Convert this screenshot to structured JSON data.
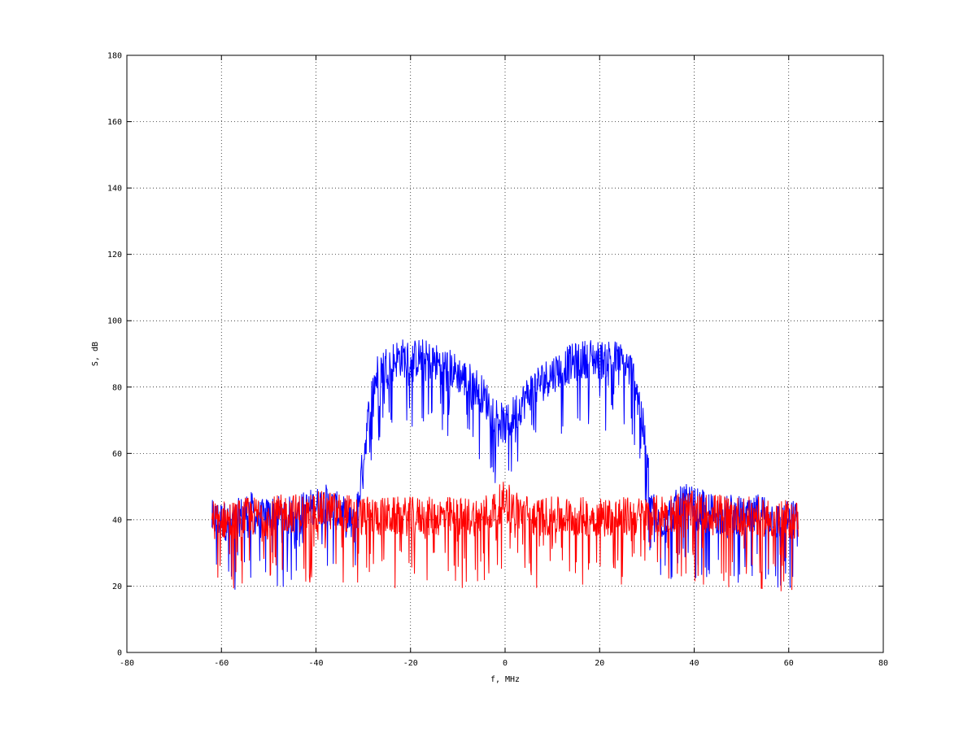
{
  "chart_data": {
    "type": "line",
    "title": "",
    "xlabel": "f, MHz",
    "ylabel": "S, dB",
    "xlim": [
      -80,
      80
    ],
    "ylim": [
      0,
      180
    ],
    "xticks": [
      -80,
      -60,
      -40,
      -20,
      0,
      20,
      40,
      60,
      80
    ],
    "yticks": [
      0,
      20,
      40,
      60,
      80,
      100,
      120,
      140,
      160,
      180
    ],
    "xtick_labels": [
      "-80",
      "-60",
      "-40",
      "-20",
      "0",
      "20",
      "40",
      "60",
      "80"
    ],
    "ytick_labels": [
      "0",
      "20",
      "40",
      "60",
      "80",
      "100",
      "120",
      "140",
      "160",
      "180"
    ],
    "grid": true,
    "legend": "none",
    "series": [
      {
        "color": "#0000ff",
        "x": [
          -62,
          -60,
          -58,
          -56,
          -54,
          -52,
          -50,
          -48,
          -46,
          -44,
          -42,
          -40,
          -38,
          -36,
          -34,
          -32,
          -31,
          -30,
          -29,
          -28,
          -27,
          -26,
          -25,
          -24,
          -22,
          -20,
          -18,
          -16,
          -14,
          -12,
          -10,
          -8,
          -6,
          -4,
          -3,
          -2,
          -1,
          0,
          1,
          2,
          3,
          4,
          6,
          8,
          10,
          12,
          14,
          16,
          18,
          20,
          22,
          24,
          25,
          26,
          27,
          28,
          29,
          30,
          31,
          32,
          34,
          36,
          38,
          40,
          42,
          44,
          46,
          48,
          50,
          52,
          54,
          56,
          58,
          60,
          62
        ],
        "y": [
          40,
          40,
          39,
          41,
          43,
          40,
          41,
          42,
          41,
          42,
          43,
          44,
          45,
          43,
          41,
          38,
          46,
          58,
          70,
          80,
          84,
          86,
          87,
          88,
          89,
          88,
          89,
          88,
          87,
          86,
          84,
          82,
          80,
          76,
          74,
          72,
          70,
          68,
          70,
          72,
          74,
          76,
          80,
          82,
          84,
          86,
          87,
          88,
          89,
          88,
          89,
          88,
          87,
          86,
          84,
          80,
          70,
          58,
          46,
          38,
          41,
          43,
          45,
          44,
          43,
          42,
          41,
          42,
          41,
          40,
          43,
          41,
          39,
          40,
          40
        ]
      },
      {
        "color": "#ff0000",
        "x": [
          -62,
          -58,
          -54,
          -50,
          -46,
          -42,
          -38,
          -34,
          -30,
          -26,
          -22,
          -18,
          -14,
          -10,
          -6,
          -2,
          -1,
          0,
          1,
          2,
          6,
          10,
          14,
          18,
          22,
          26,
          30,
          34,
          38,
          42,
          46,
          50,
          54,
          58,
          62
        ],
        "y": [
          40,
          40,
          41,
          41,
          42,
          42,
          43,
          42,
          41,
          41,
          41,
          41,
          41,
          41,
          41,
          43,
          45,
          46,
          45,
          43,
          41,
          41,
          41,
          41,
          41,
          41,
          41,
          42,
          43,
          42,
          42,
          41,
          41,
          40,
          40
        ]
      }
    ]
  }
}
